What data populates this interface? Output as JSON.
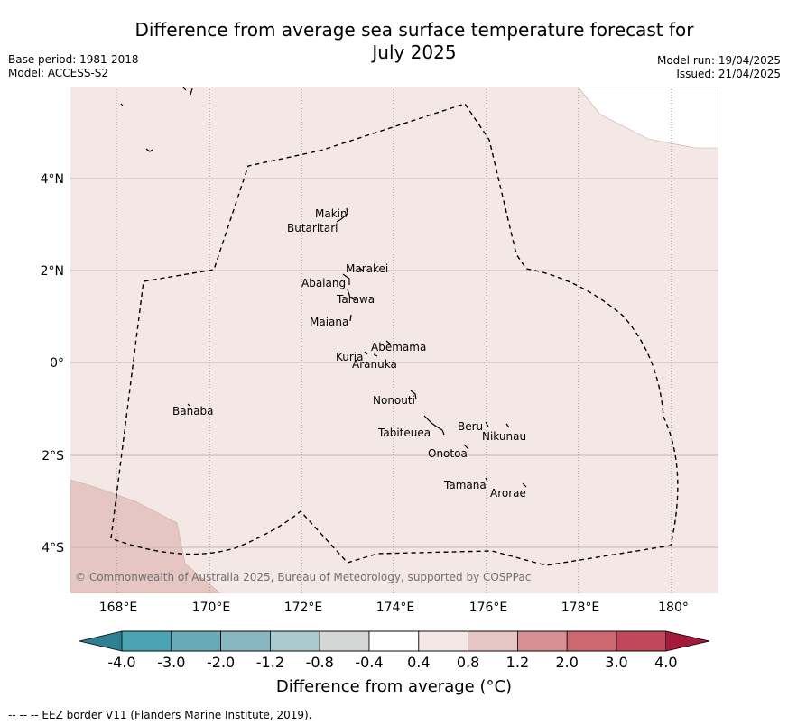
{
  "header": {
    "title_line1": "Difference from average sea surface temperature forecast for",
    "title_line2": "July 2025",
    "base_period": "Base period: 1981-2018",
    "model": "Model: ACCESS-S2",
    "model_run": "Model run: 19/04/2025",
    "issued": "Issued: 21/04/2025"
  },
  "map": {
    "lon_ticks": [
      "168°E",
      "170°E",
      "172°E",
      "174°E",
      "176°E",
      "178°E",
      "180°"
    ],
    "lat_ticks": [
      "4°N",
      "2°N",
      "0°",
      "2°S",
      "4°S"
    ],
    "copyright": "© Commonwealth of Australia 2025, Bureau of Meteorology, supported by COSPPac",
    "places": [
      "Makin",
      "Butaritari",
      "Marakei",
      "Abaiang",
      "Tarawa",
      "Maiana",
      "Abemama",
      "Kuria",
      "Aranuka",
      "Nonouti",
      "Banaba",
      "Beru",
      "Nikunau",
      "Tabiteuea",
      "Onotoa",
      "Tamana",
      "Arorae"
    ],
    "colors": {
      "anomaly_0_4_to_0_8": "#f4e8e6",
      "anomaly_0_8_to_1_2": "#e6c6c2",
      "eez_border": "#000000"
    }
  },
  "colorbar": {
    "labels": [
      "-4.0",
      "-3.0",
      "-2.0",
      "-1.2",
      "-0.8",
      "-0.4",
      "0.4",
      "0.8",
      "1.2",
      "2.0",
      "3.0",
      "4.0"
    ],
    "colors": [
      "#2e7f8f",
      "#49a3b2",
      "#69aab8",
      "#88b7c1",
      "#a8c9cd",
      "#d5d6d6",
      "#ffffff",
      "#f4e8e6",
      "#e6c6c2",
      "#d88e95",
      "#cd6870",
      "#c14858",
      "#a31a3a"
    ],
    "title": "Difference from average (°C)"
  },
  "footnote": "--  --  -- EEZ border V11 (Flanders Marine Institute, 2019)."
}
